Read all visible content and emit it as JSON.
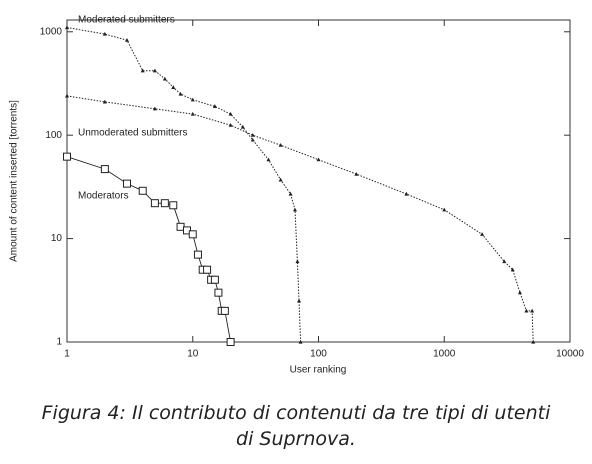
{
  "chart_data": {
    "type": "line",
    "x_label": "User ranking",
    "y_label": "Amount of content inserted [torrents]",
    "xscale": "log",
    "yscale": "log",
    "xlim": [
      1,
      10000
    ],
    "ylim": [
      1,
      1300
    ],
    "xticks": [
      1,
      10,
      100,
      1000,
      10000
    ],
    "yticks": [
      1,
      10,
      100,
      1000
    ],
    "series": [
      {
        "name": "Moderated submitters",
        "color": "#222222",
        "marker": "triangle",
        "line_style": "dotted",
        "x": [
          1,
          2,
          3,
          4,
          5,
          6,
          7,
          8,
          10,
          15,
          20,
          25,
          30,
          40,
          50,
          60,
          65,
          68,
          70,
          72
        ],
        "values": [
          1100,
          950,
          830,
          420,
          420,
          350,
          290,
          250,
          220,
          190,
          160,
          120,
          90,
          58,
          37,
          27,
          19,
          6,
          2.5,
          1
        ]
      },
      {
        "name": "Unmoderated submitters",
        "color": "#222222",
        "marker": "triangle",
        "line_style": "dotted",
        "x": [
          1,
          2,
          5,
          10,
          20,
          30,
          50,
          100,
          200,
          500,
          1000,
          2000,
          3000,
          3500,
          4000,
          4500,
          5000,
          5100
        ],
        "values": [
          240,
          210,
          180,
          160,
          125,
          100,
          80,
          58,
          42,
          27,
          19,
          11,
          6,
          5,
          3,
          2,
          2,
          1
        ]
      },
      {
        "name": "Moderators",
        "color": "#222222",
        "marker": "square",
        "line_style": "solid",
        "x": [
          1,
          2,
          3,
          4,
          5,
          6,
          7,
          8,
          9,
          10,
          11,
          12,
          13,
          14,
          15,
          16,
          17,
          18,
          20
        ],
        "values": [
          62,
          47,
          34,
          29,
          22,
          22,
          21,
          13,
          12,
          11,
          7,
          5,
          5,
          4,
          4,
          3,
          2,
          2,
          1
        ]
      }
    ],
    "caption": [
      "Figura 4: Il contributo di contenuti da tre tipi di utenti",
      "di Suprnova."
    ]
  }
}
